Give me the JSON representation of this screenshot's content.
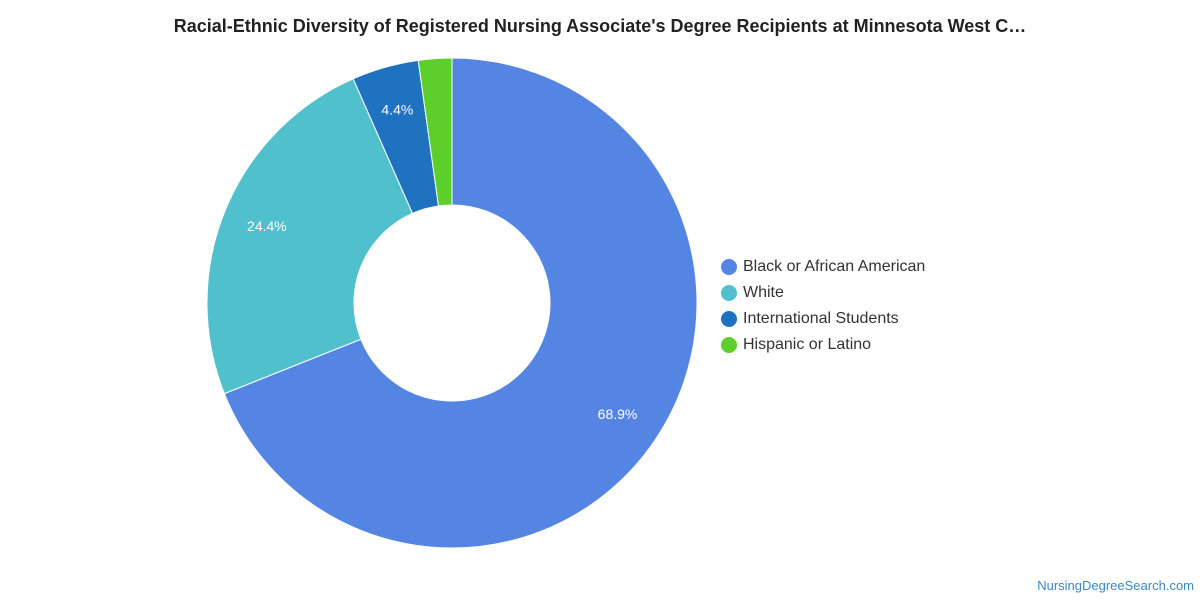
{
  "title": "Racial-Ethnic Diversity of Registered Nursing Associate's Degree Recipients at Minnesota West C…",
  "chart_data": {
    "type": "pie",
    "variant": "donut",
    "title": "Racial-Ethnic Diversity of Registered Nursing Associate's Degree Recipients at Minnesota West C…",
    "categories": [
      "Black or African American",
      "White",
      "International Students",
      "Hispanic or Latino"
    ],
    "values": [
      68.9,
      24.4,
      4.4,
      2.2
    ],
    "value_labels": [
      "68.9%",
      "24.4%",
      "4.4%",
      ""
    ],
    "colors": [
      "#5585e3",
      "#50c0cd",
      "#1f72bf",
      "#5ccf2a"
    ],
    "legend_position": "right"
  },
  "watermark": "NursingDegreeSearch.com"
}
